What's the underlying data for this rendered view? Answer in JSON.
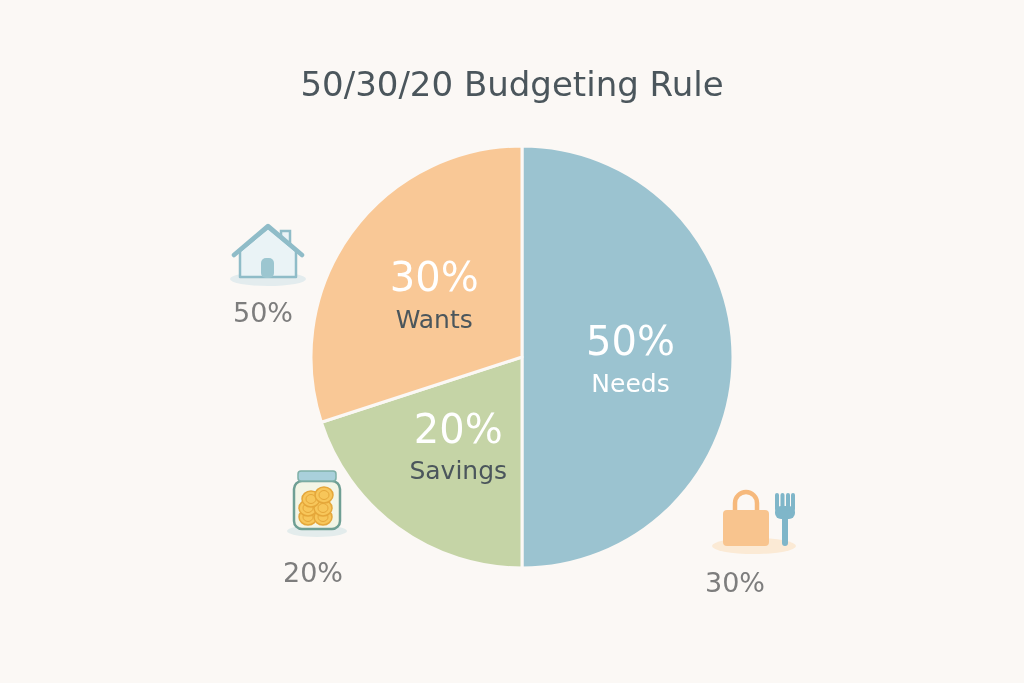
{
  "chart_data": {
    "type": "pie",
    "title": "50/30/20 Budgeting Rule",
    "categories": [
      "Needs",
      "Savings",
      "Wants"
    ],
    "values": [
      50,
      20,
      30
    ],
    "value_labels": [
      "50%",
      "20%",
      "30%"
    ],
    "colors": [
      "#9bc3d0",
      "#c5d4a6",
      "#f9c896"
    ],
    "annotations": [
      "50%",
      "20%",
      "30%"
    ]
  }
}
